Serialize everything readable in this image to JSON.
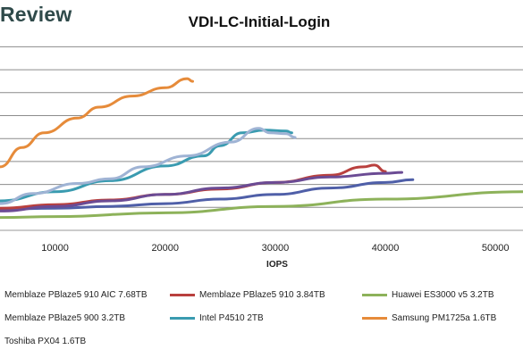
{
  "brand": "Review",
  "chart_data": {
    "type": "line",
    "title": "VDI-LC-Initial-Login",
    "xlabel": "IOPS",
    "ylabel": "",
    "x_ticks": [
      10000,
      20000,
      30000,
      40000,
      50000
    ],
    "xlim": [
      5000,
      52500
    ],
    "ylim": [
      0,
      10
    ],
    "grid": true,
    "series": [
      {
        "name": "Memblaze PBlaze5 910 AIC 7.68TB",
        "color": "#4f5fa8",
        "points": [
          [
            5000,
            1.15
          ],
          [
            10000,
            1.2
          ],
          [
            15000,
            1.3
          ],
          [
            20000,
            1.45
          ],
          [
            25000,
            1.7
          ],
          [
            30000,
            1.95
          ],
          [
            35000,
            2.3
          ],
          [
            40000,
            2.6
          ],
          [
            42500,
            2.75
          ]
        ]
      },
      {
        "name": "Memblaze PBlaze5 910 3.84TB",
        "color": "#b9403e",
        "points": [
          [
            5000,
            1.2
          ],
          [
            10000,
            1.4
          ],
          [
            15000,
            1.65
          ],
          [
            20000,
            1.95
          ],
          [
            25000,
            2.25
          ],
          [
            30000,
            2.6
          ],
          [
            35000,
            3.0
          ],
          [
            38000,
            3.45
          ],
          [
            39000,
            3.55
          ],
          [
            40000,
            3.2
          ]
        ]
      },
      {
        "name": "Huawei ES3000 v5 3.2TB",
        "color": "#8db25a",
        "points": [
          [
            5000,
            0.7
          ],
          [
            10000,
            0.75
          ],
          [
            20000,
            0.95
          ],
          [
            30000,
            1.3
          ],
          [
            40000,
            1.7
          ],
          [
            52500,
            2.1
          ]
        ]
      },
      {
        "name": "Memblaze PBlaze5 900 3.2TB",
        "color": "#6b4b94",
        "points": [
          [
            5000,
            1.05
          ],
          [
            10000,
            1.3
          ],
          [
            15000,
            1.6
          ],
          [
            20000,
            1.95
          ],
          [
            25000,
            2.3
          ],
          [
            30000,
            2.6
          ],
          [
            35000,
            2.9
          ],
          [
            40000,
            3.1
          ],
          [
            41500,
            3.15
          ]
        ]
      },
      {
        "name": "Intel P4510 2TB",
        "color": "#3a9bb0",
        "points": [
          [
            5000,
            1.6
          ],
          [
            10000,
            2.1
          ],
          [
            15000,
            2.7
          ],
          [
            20000,
            3.5
          ],
          [
            23500,
            4.05
          ],
          [
            25000,
            4.6
          ],
          [
            27000,
            5.3
          ],
          [
            29000,
            5.45
          ],
          [
            31000,
            5.4
          ],
          [
            31500,
            5.3
          ]
        ]
      },
      {
        "name": "Samsung PM1725a 1.6TB",
        "color": "#e68b3a",
        "points": [
          [
            5000,
            3.45
          ],
          [
            7000,
            4.5
          ],
          [
            9000,
            5.3
          ],
          [
            12000,
            6.1
          ],
          [
            14000,
            6.7
          ],
          [
            17000,
            7.3
          ],
          [
            20000,
            7.75
          ],
          [
            22000,
            8.25
          ],
          [
            22500,
            8.1
          ]
        ]
      },
      {
        "name": "Toshiba PX04 1.6TB",
        "color": "#9fb3d4",
        "points": [
          [
            5000,
            1.45
          ],
          [
            8000,
            2.0
          ],
          [
            12000,
            2.55
          ],
          [
            15000,
            2.8
          ],
          [
            18000,
            3.45
          ],
          [
            22000,
            4.05
          ],
          [
            26000,
            4.8
          ],
          [
            28500,
            5.55
          ],
          [
            29500,
            5.3
          ],
          [
            31000,
            5.25
          ],
          [
            31800,
            5.05
          ]
        ]
      }
    ]
  }
}
